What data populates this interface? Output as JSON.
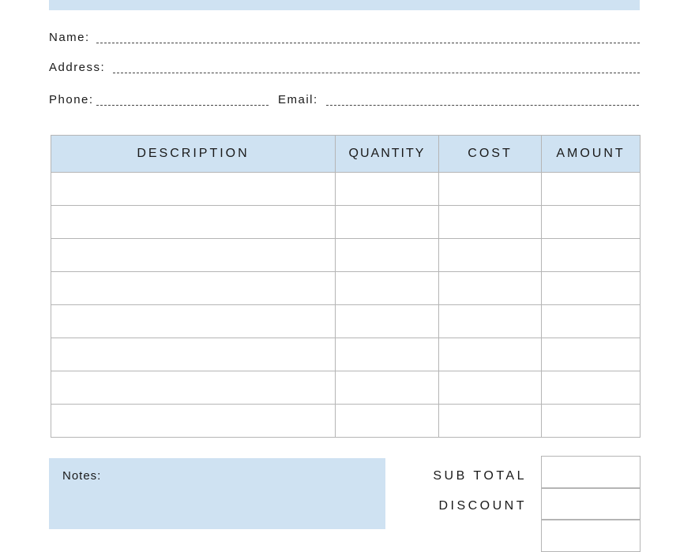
{
  "form": {
    "name_label": "Name:",
    "address_label": "Address:",
    "phone_label": "Phone:",
    "email_label": "Email:"
  },
  "table": {
    "headers": [
      "DESCRIPTION",
      "QUANTITY",
      "COST",
      "AMOUNT"
    ],
    "empty_rows": 8
  },
  "notes_label": "Notes:",
  "totals": {
    "subtotal_label": "SUB TOTAL",
    "discount_label": "DISCOUNT"
  },
  "colors": {
    "accent": "#cfe2f2",
    "border": "#b5b5b5"
  }
}
